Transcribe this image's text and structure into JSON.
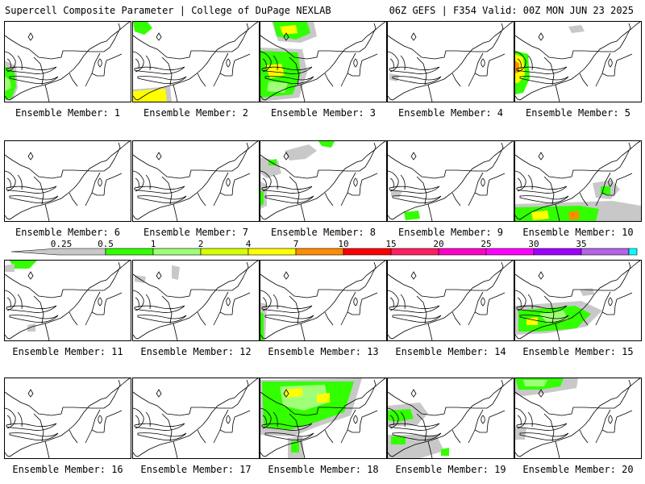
{
  "header": {
    "left": "Supercell Composite Parameter | College of DuPage NEXLAB",
    "right": "06Z GEFS | F354 Valid: 00Z MON JUN 23 2025"
  },
  "colors": {
    "gray": "#c8c8c8",
    "lime": "#32ff00",
    "light_green": "#a0ff78",
    "yellow_green": "#d7ff00",
    "yellow": "#ffff00",
    "orange": "#ff8c00",
    "red": "#ff0000",
    "crimson": "#ff2060",
    "magenta": "#ff00c8",
    "pink_magenta": "#ff00ff",
    "purple": "#a000ff",
    "violet": "#b464e6",
    "cyan": "#00ffff"
  },
  "colorbar": {
    "labels": [
      "0.25",
      "0.5",
      "1",
      "2",
      "4",
      "7",
      "10",
      "15",
      "20",
      "25",
      "30",
      "35"
    ],
    "colors": [
      "#c8c8c8",
      "#32ff00",
      "#a0ff78",
      "#d7ff00",
      "#ffff00",
      "#ff8c00",
      "#ff0000",
      "#ff2060",
      "#ff00c8",
      "#ff00ff",
      "#a000ff",
      "#b464e6",
      "#00ffff"
    ]
  },
  "members": [
    {
      "label": "Ensemble Member: 1"
    },
    {
      "label": "Ensemble Member: 2"
    },
    {
      "label": "Ensemble Member: 3"
    },
    {
      "label": "Ensemble Member: 4"
    },
    {
      "label": "Ensemble Member: 5"
    },
    {
      "label": "Ensemble Member: 6"
    },
    {
      "label": "Ensemble Member: 7"
    },
    {
      "label": "Ensemble Member: 8"
    },
    {
      "label": "Ensemble Member: 9"
    },
    {
      "label": "Ensemble Member: 10"
    },
    {
      "label": "Ensemble Member: 11"
    },
    {
      "label": "Ensemble Member: 12"
    },
    {
      "label": "Ensemble Member: 13"
    },
    {
      "label": "Ensemble Member: 14"
    },
    {
      "label": "Ensemble Member: 15"
    },
    {
      "label": "Ensemble Member: 16"
    },
    {
      "label": "Ensemble Member: 17"
    },
    {
      "label": "Ensemble Member: 18"
    },
    {
      "label": "Ensemble Member: 19"
    },
    {
      "label": "Ensemble Member: 20"
    }
  ]
}
